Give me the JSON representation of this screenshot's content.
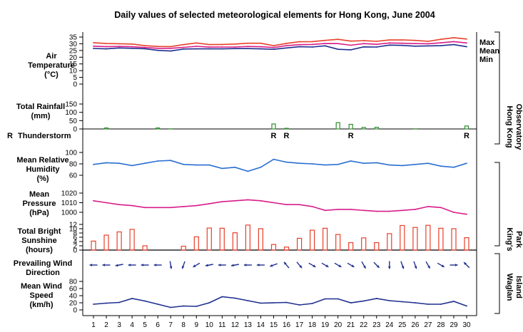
{
  "chart_data": {
    "title": "Daily values of selected meteorological elements for Hong Kong, June 2004",
    "days": [
      1,
      2,
      3,
      4,
      5,
      6,
      7,
      8,
      9,
      10,
      11,
      12,
      13,
      14,
      15,
      16,
      17,
      18,
      19,
      20,
      21,
      22,
      23,
      24,
      25,
      26,
      27,
      28,
      29,
      30
    ],
    "colors": {
      "max": "#e8402a",
      "mean": "#d81d8a",
      "min": "#1f2f8f",
      "humidity": "#2a6fd0",
      "pressure": "#d81d8a",
      "rain": "#2e8b2e",
      "sunshine": "#e8402a",
      "wind_dir": "#1f2f8f",
      "wind_speed": "#1f2f8f"
    },
    "panels": {
      "temperature": {
        "type": "line",
        "label": [
          "Air",
          "Temperature",
          "(°C)"
        ],
        "ylim": [
          0,
          35
        ],
        "ticks": [
          0,
          5,
          10,
          15,
          20,
          25,
          30,
          35
        ],
        "series": [
          {
            "name": "Max",
            "key": "max",
            "values": [
              30.8,
              30.2,
              30.0,
              29.8,
              28.6,
              28.0,
              27.9,
              29.4,
              30.6,
              29.4,
              29.5,
              29.8,
              30.4,
              30.4,
              28.6,
              30.3,
              31.5,
              31.6,
              32.5,
              33.3,
              32.0,
              32.3,
              31.8,
              32.8,
              32.9,
              32.5,
              31.8,
              33.3,
              34.5,
              33.5
            ]
          },
          {
            "name": "Mean",
            "key": "mean",
            "values": [
              28.2,
              27.9,
              28.0,
              27.8,
              27.2,
              26.6,
              26.6,
              27.3,
              28.1,
              27.5,
              27.6,
              27.6,
              28.0,
              27.8,
              27.2,
              28.6,
              29.3,
              29.5,
              30.2,
              30.1,
              28.9,
              30.1,
              29.6,
              30.6,
              30.4,
              30.1,
              30.0,
              30.7,
              31.6,
              30.6
            ]
          },
          {
            "name": "Min",
            "key": "min",
            "values": [
              26.5,
              26.2,
              26.9,
              26.6,
              26.3,
              25.1,
              24.6,
              26.1,
              26.2,
              26.2,
              26.2,
              26.4,
              26.4,
              26.2,
              25.9,
              26.9,
              27.8,
              27.6,
              28.5,
              25.9,
              25.5,
              27.7,
              27.6,
              29.0,
              28.8,
              28.2,
              28.4,
              28.6,
              29.4,
              27.8
            ]
          }
        ],
        "legend": [
          "Max",
          "Mean",
          "Min"
        ]
      },
      "rainfall": {
        "type": "bar",
        "label": [
          "Total Rainfall",
          "(mm)"
        ],
        "ylim": [
          0,
          150
        ],
        "ticks": [
          0,
          50,
          100,
          150
        ],
        "values": [
          0,
          6,
          0,
          0,
          0,
          6,
          1,
          0,
          0,
          0,
          0,
          0,
          0,
          0,
          30,
          4,
          0,
          0,
          0,
          38,
          28,
          9,
          10,
          0,
          0,
          1,
          0,
          0,
          0,
          18
        ]
      },
      "thunderstorm": {
        "type": "marker",
        "label": "Thunderstorm",
        "legend_symbol": "R",
        "days": [
          15,
          16,
          21,
          30
        ]
      },
      "humidity": {
        "type": "line",
        "label": [
          "Mean Relative",
          "Humidity",
          "(%)"
        ],
        "ylim": [
          60,
          100
        ],
        "ticks": [
          60,
          80,
          100
        ],
        "values": [
          79,
          82,
          81,
          77,
          81,
          85,
          86,
          79,
          78,
          78,
          72,
          74,
          67,
          74,
          88,
          83,
          81,
          80,
          78,
          79,
          85,
          81,
          82,
          78,
          77,
          79,
          81,
          76,
          74,
          81
        ]
      },
      "pressure": {
        "type": "line",
        "label": [
          "Mean",
          "Pressure",
          "(hPa)"
        ],
        "ylim": [
          1000,
          1020
        ],
        "ticks": [
          1000,
          1010,
          1020
        ],
        "values": [
          1012,
          1010,
          1008,
          1007,
          1005,
          1005,
          1005,
          1006,
          1007,
          1009,
          1011,
          1012,
          1013,
          1012,
          1010,
          1008,
          1008,
          1006,
          1002,
          1003,
          1003,
          1002,
          1001,
          1001,
          1002,
          1003,
          1006,
          1005,
          1000,
          998
        ]
      },
      "sunshine": {
        "type": "bar",
        "label": [
          "Total Bright",
          "Sunshine",
          "(hours)"
        ],
        "ylim": [
          0,
          12
        ],
        "ticks": [
          0,
          2,
          4,
          6,
          8,
          10,
          12
        ],
        "values": [
          4.2,
          7.0,
          8.5,
          9.7,
          2.0,
          0,
          0,
          1.8,
          6.2,
          10.3,
          10.2,
          8.1,
          11.7,
          10.0,
          2.6,
          1.4,
          5.5,
          9.3,
          10.2,
          7.3,
          3.5,
          5.7,
          3.5,
          7.7,
          11.5,
          10.6,
          11.6,
          10.2,
          10.0,
          5.8
        ]
      },
      "wind_direction": {
        "type": "arrows",
        "label": [
          "Prevailing Wind",
          "Direction"
        ],
        "degrees": [
          90,
          90,
          80,
          90,
          90,
          90,
          350,
          20,
          60,
          80,
          90,
          80,
          90,
          90,
          70,
          140,
          320,
          300,
          300,
          300,
          300,
          330,
          315,
          360,
          340,
          340,
          330,
          300,
          270,
          135
        ]
      },
      "wind_speed": {
        "type": "line",
        "label": [
          "Mean Wind",
          "Speed",
          "(km/h)"
        ],
        "ylim": [
          0,
          80
        ],
        "ticks": [
          0,
          20,
          40,
          60,
          80
        ],
        "values": [
          16,
          19,
          21,
          32,
          25,
          16,
          7,
          11,
          10,
          20,
          37,
          33,
          26,
          19,
          20,
          21,
          14,
          18,
          31,
          31,
          20,
          25,
          32,
          26,
          23,
          20,
          16,
          16,
          24,
          11
        ]
      }
    },
    "right_labels": {
      "observatory": [
        "Hong Kong",
        "Observatory"
      ],
      "kings_park": [
        "King's",
        "Park"
      ],
      "waglan": [
        "Waglan",
        "Island"
      ]
    }
  }
}
